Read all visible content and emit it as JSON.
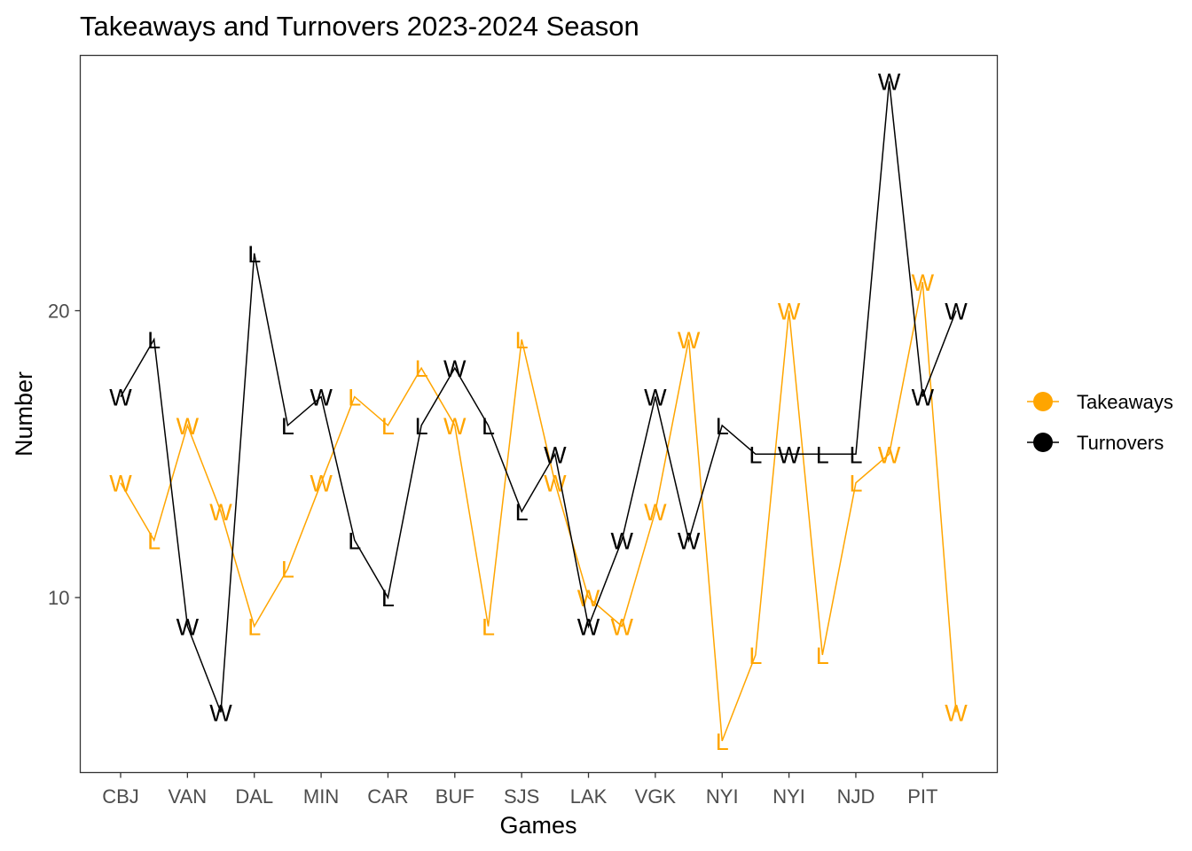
{
  "chart_data": {
    "type": "line",
    "title": "Takeaways and Turnovers 2023-2024 Season",
    "xlabel": "Games",
    "ylabel": "Number",
    "tick_labels": [
      "CBJ",
      "VAN",
      "DAL",
      "MIN",
      "CAR",
      "BUF",
      "SJS",
      "LAK",
      "VGK",
      "NYI",
      "NYI",
      "NJD",
      "PIT"
    ],
    "yticks": [
      10,
      20
    ],
    "ylim": [
      3.9,
      28.9
    ],
    "games": 26,
    "grid": false,
    "legend_position": "right",
    "series": [
      {
        "name": "Takeaways",
        "color": "#FFA500",
        "values": [
          14,
          12,
          16,
          13,
          9,
          11,
          14,
          17,
          16,
          18,
          16,
          9,
          19,
          14,
          10,
          9,
          13,
          19,
          5,
          8,
          20,
          8,
          14,
          15,
          21,
          6
        ],
        "results": [
          "W",
          "L",
          "W",
          "W",
          "L",
          "L",
          "W",
          "L",
          "L",
          "L",
          "W",
          "L",
          "L",
          "W",
          "W",
          "W",
          "W",
          "W",
          "L",
          "L",
          "W",
          "L",
          "L",
          "W",
          "W",
          "W"
        ]
      },
      {
        "name": "Turnovers",
        "color": "#000000",
        "values": [
          17,
          19,
          9,
          6,
          22,
          16,
          17,
          12,
          10,
          16,
          18,
          16,
          13,
          15,
          9,
          12,
          17,
          12,
          16,
          15,
          15,
          15,
          15,
          28,
          17,
          20
        ],
        "results": [
          "W",
          "L",
          "W",
          "W",
          "L",
          "L",
          "W",
          "L",
          "L",
          "L",
          "W",
          "L",
          "L",
          "W",
          "W",
          "W",
          "W",
          "W",
          "L",
          "L",
          "W",
          "L",
          "L",
          "W",
          "W",
          "W"
        ]
      }
    ]
  }
}
